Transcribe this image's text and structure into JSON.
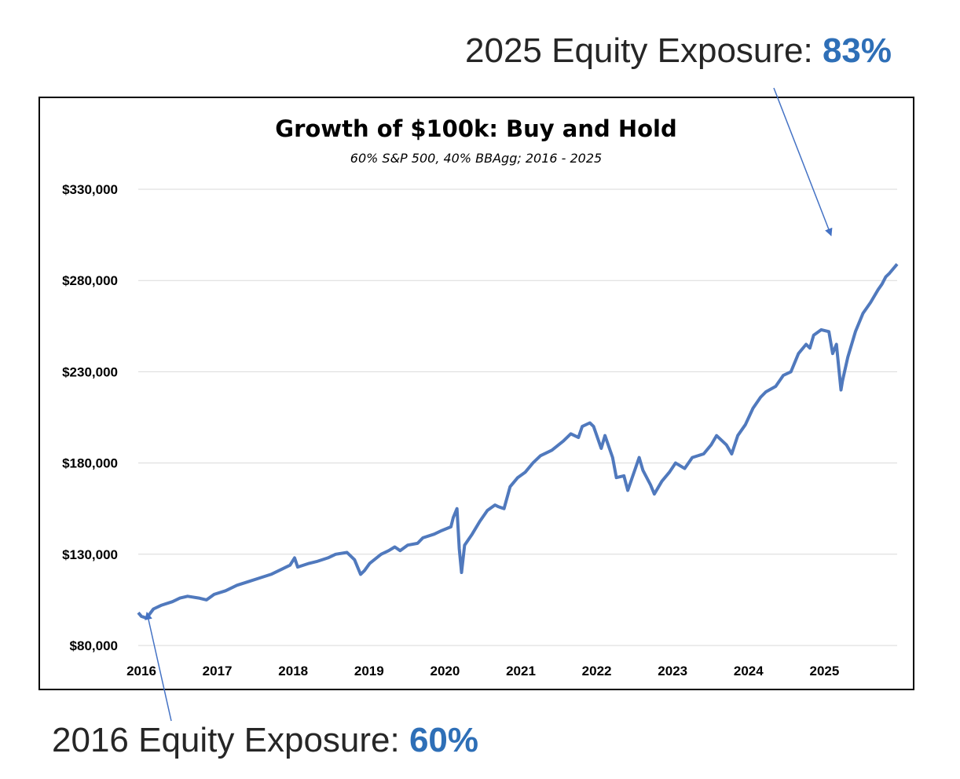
{
  "annotations": {
    "top": {
      "prefix": "2025 Equity Exposure: ",
      "value": "83%"
    },
    "bottom": {
      "prefix": "2016 Equity Exposure: ",
      "value": "60%"
    }
  },
  "colors": {
    "line": "#5079bd",
    "accent": "#2e6fb7",
    "arrow": "#4472c4",
    "grid": "#d9d9d9"
  },
  "chart_data": {
    "type": "line",
    "title": "Growth of $100k: Buy and Hold",
    "subtitle": "60% S&P 500, 40% BBAgg; 2016 - 2025",
    "xlabel": "",
    "ylabel": "",
    "xlim": [
      2016.0,
      2026.0
    ],
    "ylim": [
      80000,
      330000
    ],
    "yticks": [
      80000,
      130000,
      180000,
      230000,
      280000,
      330000
    ],
    "ytick_labels": [
      "$80,000",
      "$130,000",
      "$180,000",
      "$230,000",
      "$280,000",
      "$330,000"
    ],
    "xticks": [
      2016,
      2017,
      2018,
      2019,
      2020,
      2021,
      2022,
      2023,
      2024,
      2025
    ],
    "xtick_labels": [
      "2016",
      "2017",
      "2018",
      "2019",
      "2020",
      "2021",
      "2022",
      "2023",
      "2024",
      "2025"
    ],
    "grid": true,
    "legend": "none",
    "series": [
      {
        "x": [
          2016.0,
          2016.04,
          2016.11,
          2016.2,
          2016.3,
          2016.45,
          2016.55,
          2016.65,
          2016.8,
          2016.9,
          2017.0,
          2017.15,
          2017.3,
          2017.45,
          2017.6,
          2017.75,
          2017.9,
          2018.0,
          2018.06,
          2018.1,
          2018.25,
          2018.35,
          2018.5,
          2018.6,
          2018.75,
          2018.85,
          2018.93,
          2018.98,
          2019.05,
          2019.2,
          2019.3,
          2019.38,
          2019.45,
          2019.55,
          2019.68,
          2019.75,
          2019.9,
          2020.0,
          2020.12,
          2020.15,
          2020.2,
          2020.23,
          2020.26,
          2020.3,
          2020.4,
          2020.5,
          2020.6,
          2020.7,
          2020.75,
          2020.82,
          2020.9,
          2021.0,
          2021.1,
          2021.2,
          2021.3,
          2021.45,
          2021.6,
          2021.7,
          2021.8,
          2021.85,
          2021.95,
          2022.0,
          2022.1,
          2022.15,
          2022.25,
          2022.3,
          2022.4,
          2022.45,
          2022.6,
          2022.65,
          2022.75,
          2022.8,
          2022.9,
          2023.0,
          2023.08,
          2023.2,
          2023.3,
          2023.45,
          2023.55,
          2023.62,
          2023.75,
          2023.82,
          2023.9,
          2024.0,
          2024.1,
          2024.2,
          2024.27,
          2024.4,
          2024.5,
          2024.6,
          2024.7,
          2024.8,
          2024.85,
          2024.9,
          2025.0,
          2025.1,
          2025.15,
          2025.2,
          2025.26,
          2025.28,
          2025.35,
          2025.45,
          2025.55,
          2025.65,
          2025.75,
          2025.8,
          2025.85,
          2025.9,
          2026.0
        ],
        "y": [
          98000,
          96000,
          95000,
          100000,
          102000,
          104000,
          106000,
          107000,
          106000,
          105000,
          108000,
          110000,
          113000,
          115000,
          117000,
          119000,
          122000,
          124000,
          128000,
          123000,
          125000,
          126000,
          128000,
          130000,
          131000,
          127000,
          119000,
          121000,
          125000,
          130000,
          132000,
          134000,
          132000,
          135000,
          136000,
          139000,
          141000,
          143000,
          145000,
          150000,
          155000,
          133000,
          120000,
          135000,
          141000,
          148000,
          154000,
          157000,
          156000,
          155000,
          167000,
          172000,
          175000,
          180000,
          184000,
          187000,
          192000,
          196000,
          194000,
          200000,
          202000,
          200000,
          188000,
          195000,
          183000,
          172000,
          173000,
          165000,
          183000,
          176000,
          168000,
          163000,
          170000,
          175000,
          180000,
          177000,
          183000,
          185000,
          190000,
          195000,
          190000,
          185000,
          195000,
          201000,
          210000,
          216000,
          219000,
          222000,
          228000,
          230000,
          240000,
          245000,
          243000,
          250000,
          253000,
          252000,
          240000,
          245000,
          220000,
          225000,
          238000,
          252000,
          262000,
          268000,
          275000,
          278000,
          282000,
          284000,
          289000
        ]
      }
    ]
  }
}
